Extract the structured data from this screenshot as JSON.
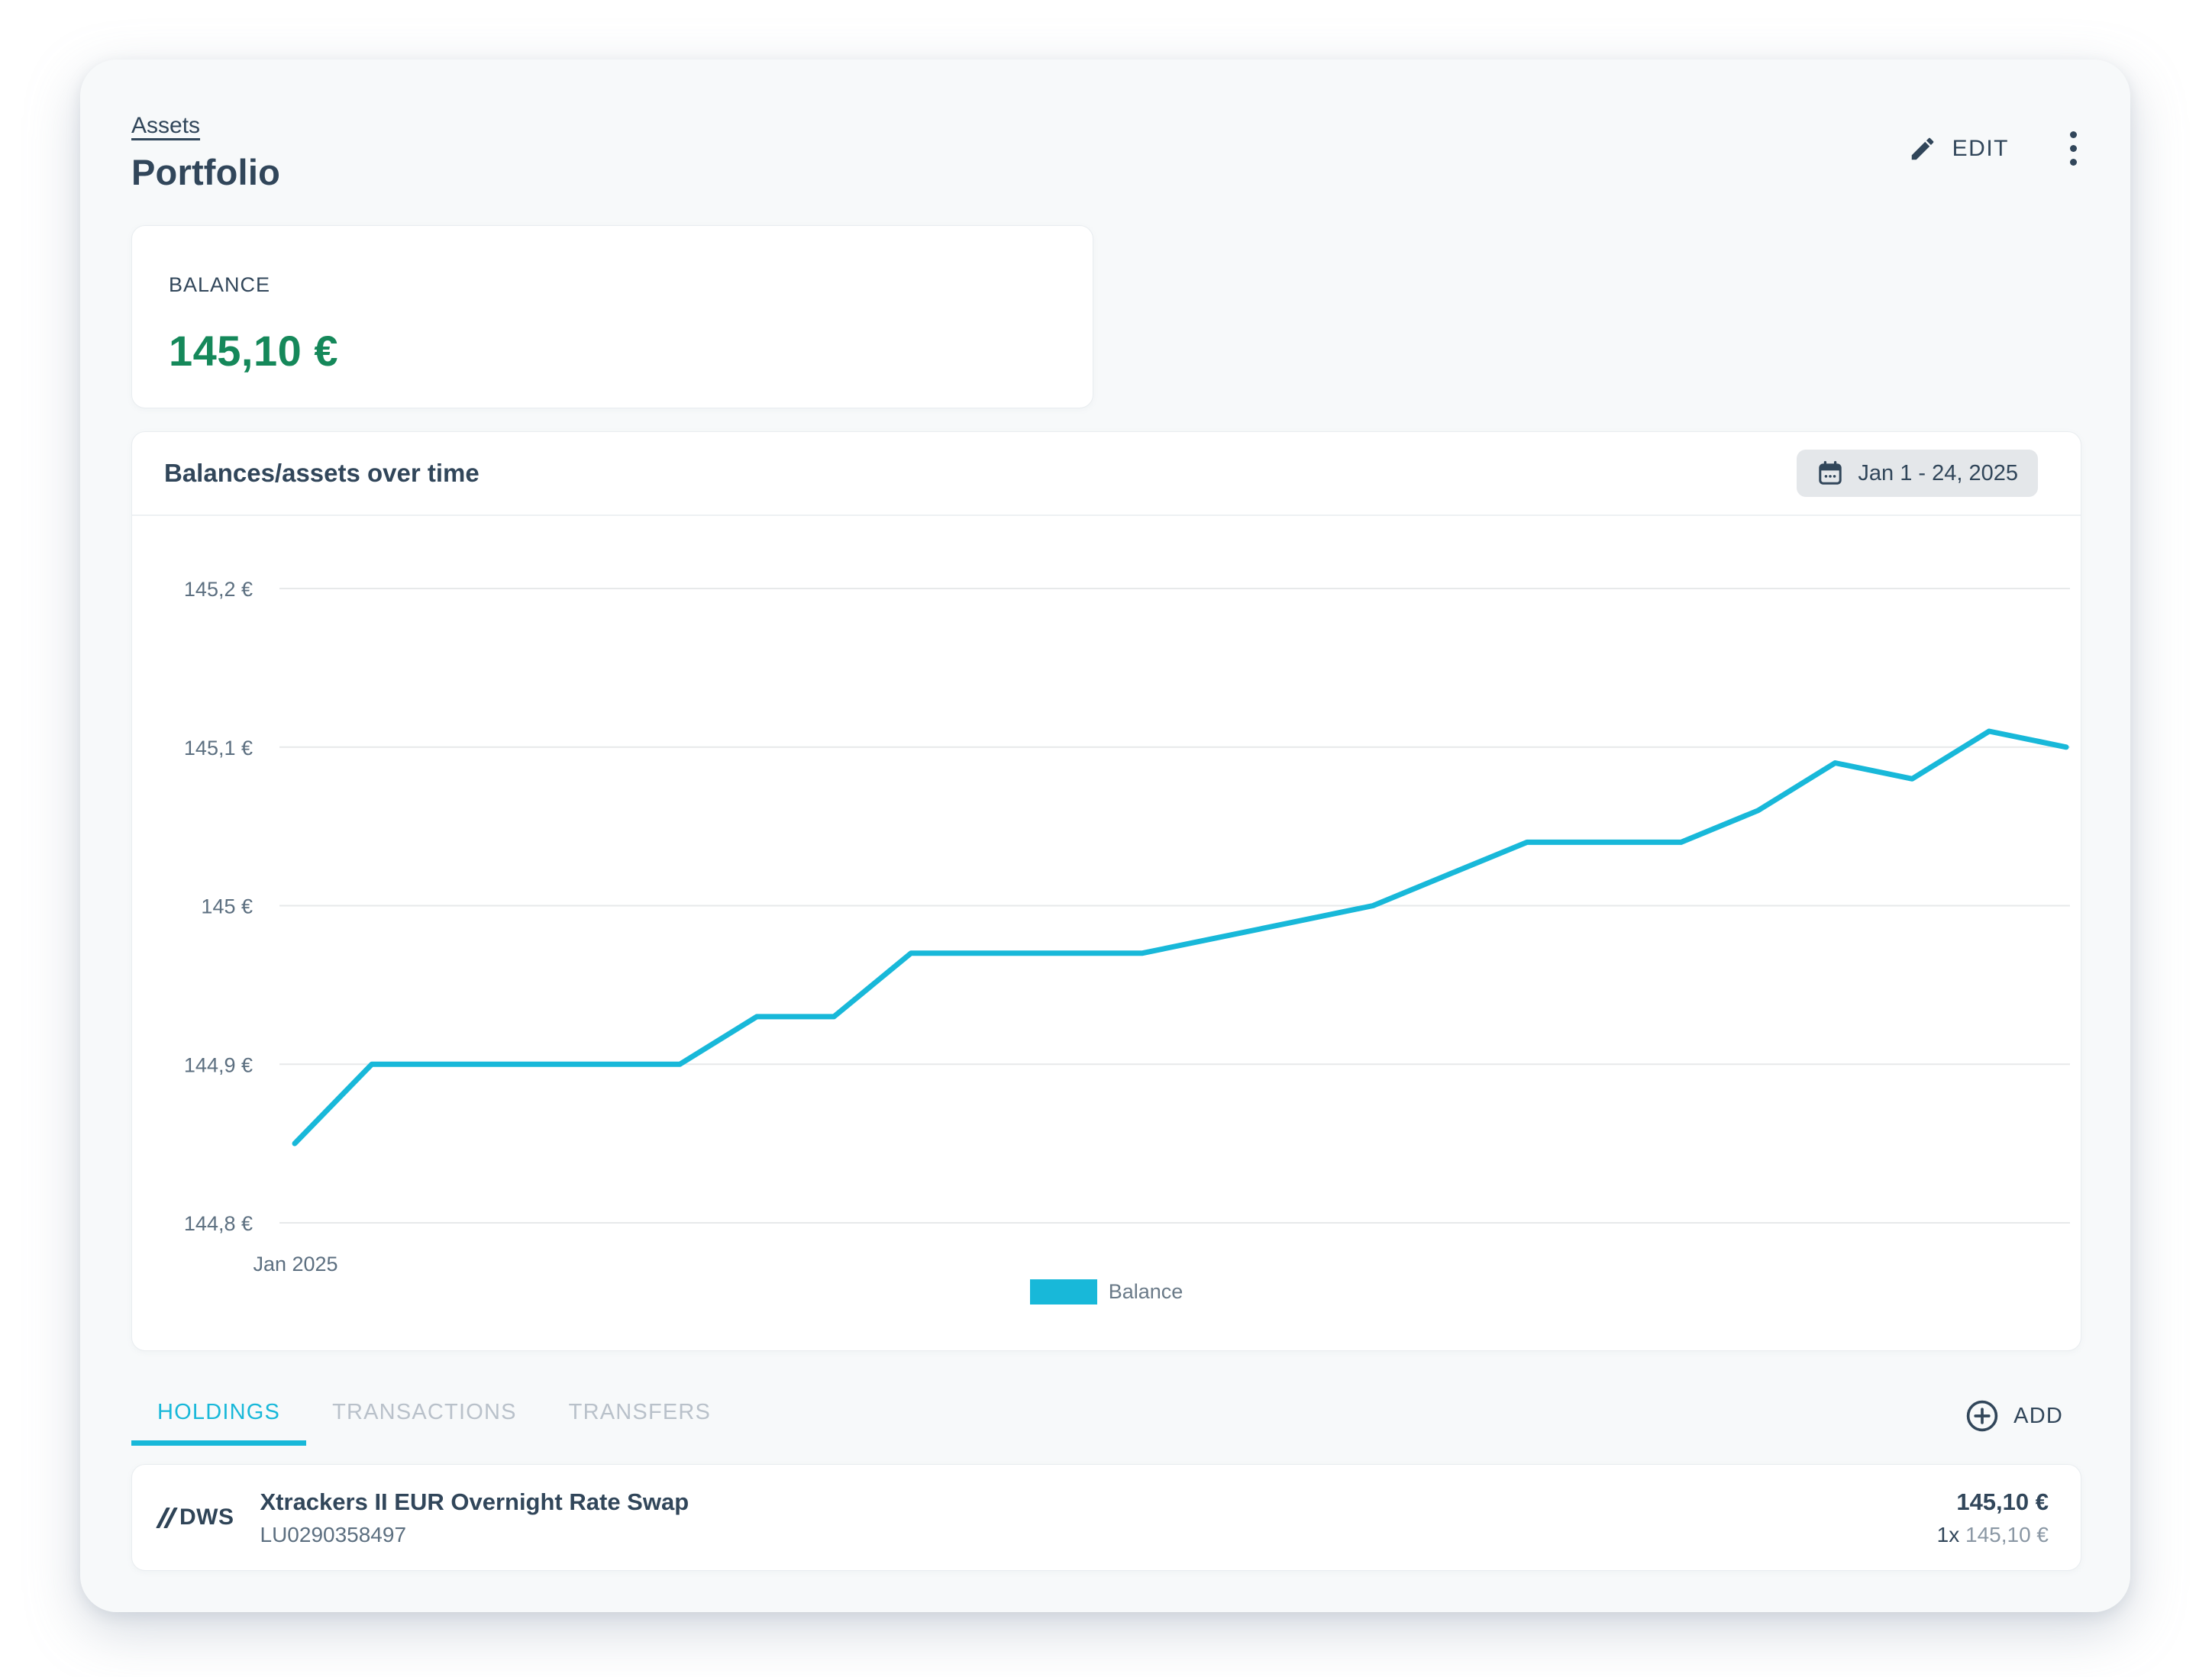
{
  "page": {
    "breadcrumb": "Assets",
    "title": "Portfolio"
  },
  "actions": {
    "edit_label": "EDIT",
    "icons": [
      "pencil-icon",
      "kebab-menu-icon"
    ]
  },
  "balance_card": {
    "label": "BALANCE",
    "value": "145,10 €"
  },
  "chart_card": {
    "date_range": "Jan 1 - 24, 2025",
    "date_icon": "calendar-icon"
  },
  "chart_data": {
    "type": "line",
    "title": "Balances/assets over time",
    "x_unit": "day of January 2025",
    "x": [
      1,
      2,
      3,
      4,
      5,
      6,
      7,
      8,
      9,
      10,
      11,
      12,
      13,
      14,
      15,
      16,
      17,
      18,
      19,
      20,
      21,
      22,
      23,
      24
    ],
    "x_tick_labels": [
      "Jan 2025"
    ],
    "series": [
      {
        "name": "Balance",
        "color": "#18b8d9",
        "values": [
          144.85,
          144.9,
          144.9,
          144.9,
          144.9,
          144.9,
          144.93,
          144.93,
          144.97,
          144.97,
          144.97,
          144.97,
          144.98,
          144.99,
          145.0,
          145.02,
          145.04,
          145.04,
          145.04,
          145.06,
          145.09,
          145.08,
          145.11,
          145.1
        ]
      }
    ],
    "ylim": [
      144.8,
      145.2
    ],
    "y_ticks": [
      144.8,
      144.9,
      145.0,
      145.1,
      145.2
    ],
    "y_tick_labels": [
      "144,8 €",
      "144,9 €",
      "145 €",
      "145,1 €",
      "145,2 €"
    ],
    "grid": "horizontal",
    "legend_position": "bottom-center",
    "legend_label": "Balance"
  },
  "tabs": [
    {
      "label": "HOLDINGS",
      "active": true
    },
    {
      "label": "TRANSACTIONS",
      "active": false
    },
    {
      "label": "TRANSFERS",
      "active": false
    }
  ],
  "add_button": {
    "label": "ADD",
    "icon": "plus-circle-icon"
  },
  "holdings": [
    {
      "logo_text": "DWS",
      "name": "Xtrackers II EUR Overnight Rate Swap",
      "isin": "LU0290358497",
      "total": "145,10 €",
      "quantity": "1x",
      "unit_value": "145,10 €"
    }
  ],
  "colors": {
    "accent_cyan": "#18b8d9",
    "balance_green": "#15885a",
    "navy_text": "#31465a",
    "muted_text": "#8a97a4",
    "inactive_tab": "#b9c1ca",
    "card_bg": "#f7f9fa",
    "chip_bg": "#e4e7ea",
    "gridline": "#e7e9ea"
  }
}
